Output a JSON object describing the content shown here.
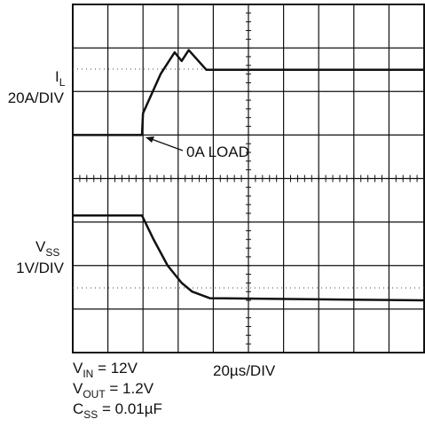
{
  "chart_data": {
    "type": "line",
    "xlim": [
      0,
      10
    ],
    "ylim": [
      0,
      8
    ],
    "grid": true,
    "series": [
      {
        "color": "#111111",
        "x": [
          0,
          1.97,
          2.0,
          2.5,
          2.9,
          3.1,
          3.3,
          3.8,
          10
        ],
        "values": [
          5.0,
          5.0,
          5.5,
          6.4,
          6.9,
          6.7,
          6.95,
          6.5,
          6.5
        ]
      },
      {
        "color": "#111111",
        "x": [
          0,
          1.97,
          2.3,
          2.7,
          3.1,
          3.4,
          3.9,
          10
        ],
        "values": [
          3.15,
          3.15,
          2.6,
          2.0,
          1.6,
          1.4,
          1.25,
          1.2
        ]
      }
    ],
    "channels": [
      {
        "label": {
          "main": "I",
          "sub": "L"
        },
        "scale": "20A/DIV"
      },
      {
        "label": {
          "main": "V",
          "sub": "SS"
        },
        "scale": "1V/DIV"
      }
    ],
    "annotation": "0A LOAD",
    "timebase": "20µs/DIV",
    "conditions": [
      {
        "main": "V",
        "sub": "IN",
        "rest": " = 12V"
      },
      {
        "main": "V",
        "sub": "OUT",
        "rest": " = 1.2V"
      },
      {
        "main": "C",
        "sub": "SS",
        "rest": " = 0.01µF"
      }
    ]
  }
}
